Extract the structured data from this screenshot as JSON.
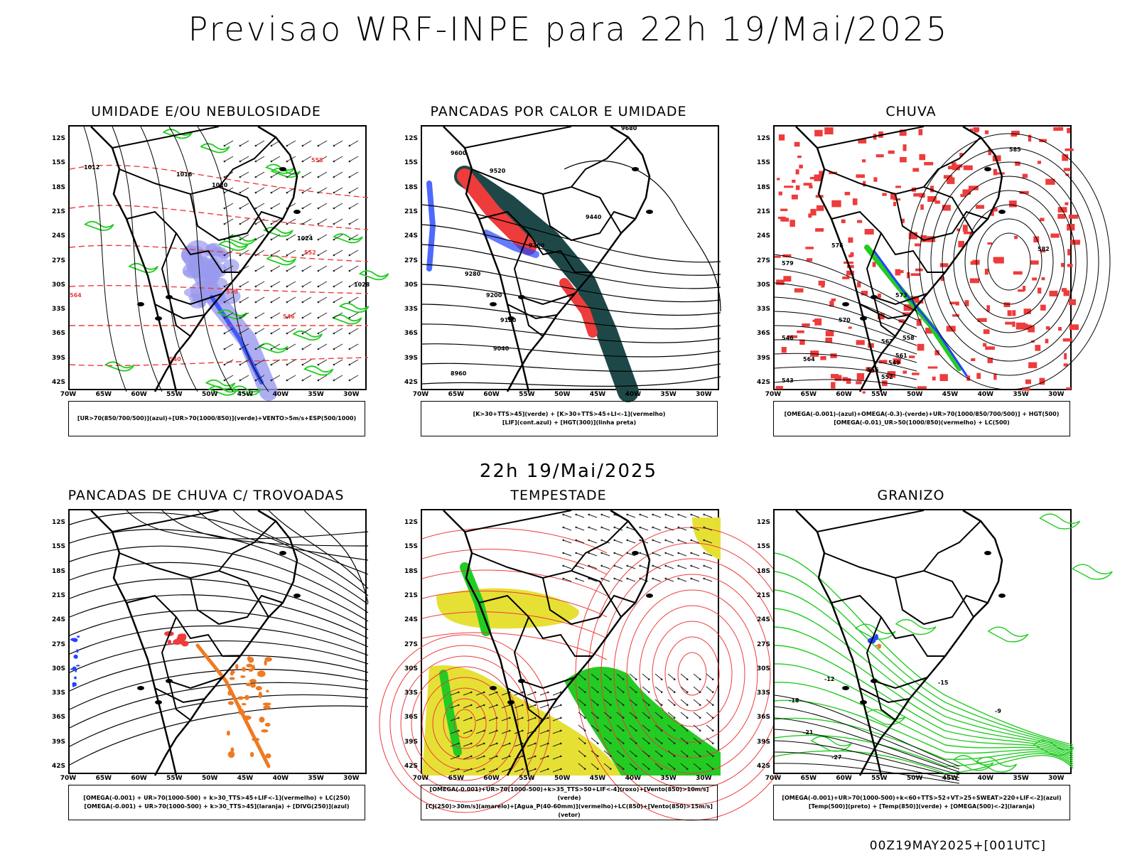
{
  "main_title": "Previsao WRF-INPE  para 22h 19/Mai/2025",
  "mid_title": "22h 19/Mai/2025",
  "footer": "00Z19MAY2025+[001UTC]",
  "lat_labels": [
    "12S",
    "15S",
    "18S",
    "21S",
    "24S",
    "27S",
    "30S",
    "33S",
    "36S",
    "39S",
    "42S"
  ],
  "lon_labels": [
    "70W",
    "65W",
    "60W",
    "55W",
    "50W",
    "45W",
    "40W",
    "35W",
    "30W"
  ],
  "colors": {
    "red": "#ee3b3b",
    "green": "#22cc22",
    "blue": "#2244ff",
    "lavender": "#9999ee",
    "darkteal": "#1e4848",
    "yellow": "#e6e035",
    "orange": "#ee7a22",
    "black": "#000000"
  },
  "panels": [
    {
      "title": "UMIDADE E/OU NEBULOSIDADE",
      "legend": [
        "[UR>70(850/700/500)](azul)+[UR>70(1000/850)](verde)+VENTO>5m/s+ESP(500/1000)"
      ],
      "labels": [
        "1016",
        "1012",
        "1020",
        "1024",
        "1028",
        "570",
        "564",
        "558",
        "552",
        "546",
        "540"
      ]
    },
    {
      "title": "PANCADAS POR CALOR E UMIDADE",
      "legend": [
        "[K>30+TTS>45](verde) + [K>30+TTS>45+LI<-1](vermelho)",
        "[LIF](cont.azul) + [HGT(300)](linha preta)"
      ],
      "labels": [
        "9680",
        "9600",
        "9520",
        "9440",
        "9360",
        "9280",
        "9200",
        "9120",
        "9040",
        "8960"
      ]
    },
    {
      "title": "CHUVA",
      "legend": [
        "[OMEGA(-0.001)-(azul)+OMEGA(-0.3)-(verde)+UR>70(1000/850/700/500)] + HGT(500)",
        "[OMEGA(-0.01)_UR>50(1000/850)(vermelho) + LC(500)"
      ],
      "labels": [
        "585",
        "582",
        "579",
        "576",
        "573",
        "570",
        "567",
        "564",
        "561",
        "558",
        "555",
        "552",
        "549",
        "546",
        "543"
      ]
    },
    {
      "title": "PANCADAS DE CHUVA C/ TROVOADAS",
      "legend": [
        "[OMEGA(-0.001) + UR>70(1000-500) + k>30_TTS>45+LIF<-1](vermelho) + LC(250)",
        "[OMEGA(-0.001) + UR>70(1000-500) + k>30_TTS>45](laranja) + [DIVG(250)](azul)"
      ],
      "labels": []
    },
    {
      "title": "TEMPESTADE",
      "legend": [
        "[OMEGA(-0.001)+UR>70(1000-500)+k>35_TTS>50+LIF<-4](roxo)+[Vento(850)>10m/s](verde)",
        "[CJ(250)>30m/s](amarelo)+[Agua_P(40-60mm)](vermelho)+LC(850)+[Vento(850)>15m/s](vetor)"
      ],
      "labels": []
    },
    {
      "title": "GRANIZO",
      "legend": [
        "[OMEGA(-0.001)+UR>70(1000-500)+k<60+TTS>52+VT>25+SWEAT>220+LIF<-2](azul)",
        "[Temp(500)](preto) + [Temp(850)](verde) + [OMEGA(500)<-2](laranja)"
      ],
      "labels": [
        "-9",
        "-12",
        "-15",
        "-18",
        "-21",
        "-27"
      ]
    }
  ]
}
